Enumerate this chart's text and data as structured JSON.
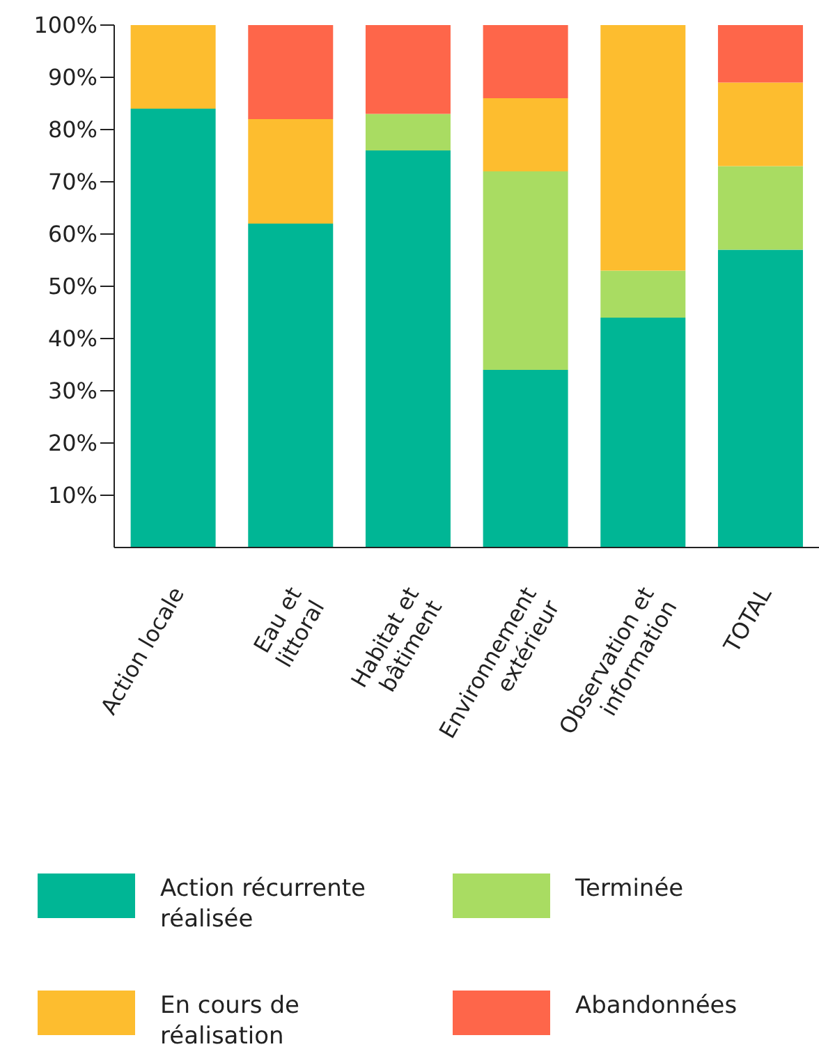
{
  "chart_data": {
    "type": "bar",
    "stacked": true,
    "categories": [
      "Action locale",
      "Eau et littoral",
      "Habitat et bâtiment",
      "Environnement extérieur",
      "Observation et information",
      "TOTAL"
    ],
    "series": [
      {
        "name": "Action récurrente réalisée",
        "color": "#00b695",
        "values": [
          84,
          62,
          76,
          34,
          44,
          57
        ]
      },
      {
        "name": "Terminée",
        "color": "#a9dc62",
        "values": [
          0,
          0,
          7,
          38,
          9,
          16
        ]
      },
      {
        "name": "En cours de réalisation",
        "color": "#fdbd2f",
        "values": [
          16,
          20,
          0,
          14,
          47,
          16
        ]
      },
      {
        "name": "Abandonnées",
        "color": "#fe664a",
        "values": [
          0,
          18,
          17,
          14,
          0,
          11
        ]
      }
    ],
    "ylim": [
      0,
      100
    ],
    "yticks": [
      {
        "value": 10,
        "label": "10%"
      },
      {
        "value": 20,
        "label": "20%"
      },
      {
        "value": 30,
        "label": "30%"
      },
      {
        "value": 40,
        "label": "40%"
      },
      {
        "value": 50,
        "label": "50%"
      },
      {
        "value": 60,
        "label": "60%"
      },
      {
        "value": 70,
        "label": "70%"
      },
      {
        "value": 80,
        "label": "80%"
      },
      {
        "value": 90,
        "label": "90%"
      },
      {
        "value": 100,
        "label": "100%"
      }
    ],
    "grid": false,
    "legend": "bottom"
  }
}
